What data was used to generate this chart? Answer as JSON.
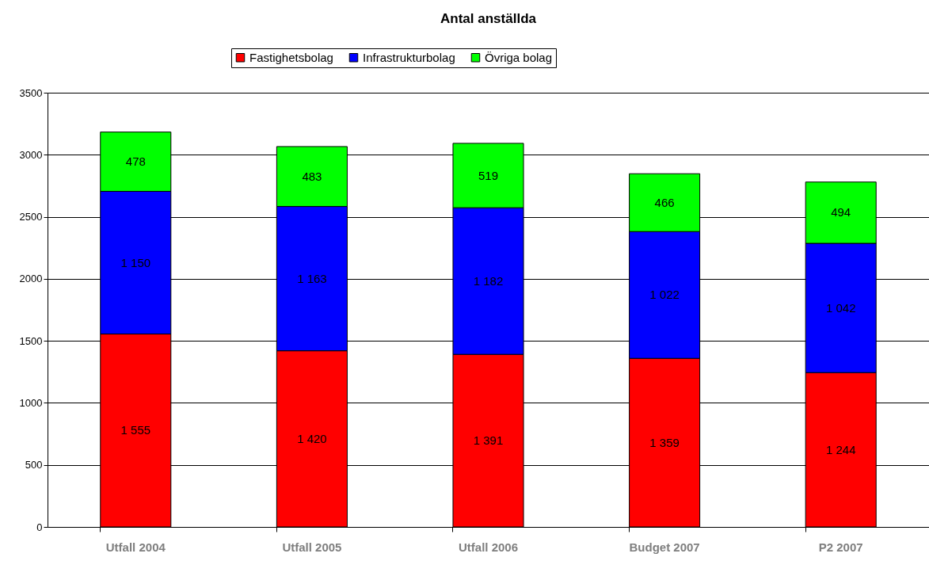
{
  "chart_data": {
    "type": "bar",
    "title": "Antal anställda",
    "stacked": true,
    "categories": [
      "Utfall 2004",
      "Utfall 2005",
      "Utfall 2006",
      "Budget 2007",
      "P2 2007"
    ],
    "series": [
      {
        "name": "Fastighetsbolag",
        "color": "#ff0000",
        "values": [
          1555,
          1420,
          1391,
          1359,
          1244
        ],
        "value_labels": [
          "1 555",
          "1 420",
          "1 391",
          "1 359",
          "1 244"
        ]
      },
      {
        "name": "Infrastrukturbolag",
        "color": "#0000ff",
        "values": [
          1150,
          1163,
          1182,
          1022,
          1042
        ],
        "value_labels": [
          "1 150",
          "1 163",
          "1 182",
          "1 022",
          "1 042"
        ]
      },
      {
        "name": "Övriga bolag",
        "color": "#00ff00",
        "values": [
          478,
          483,
          519,
          466,
          494
        ],
        "value_labels": [
          "478",
          "483",
          "519",
          "466",
          "494"
        ]
      }
    ],
    "ylim": [
      0,
      3500
    ],
    "yticks": [
      0,
      500,
      1000,
      1500,
      2000,
      2500,
      3000,
      3500
    ],
    "grid": "y",
    "legend": "top"
  }
}
